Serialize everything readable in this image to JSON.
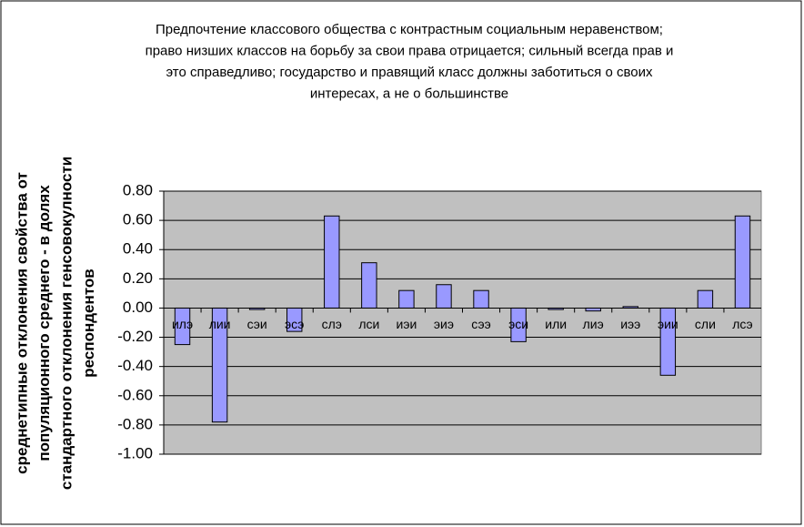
{
  "chart_data": {
    "type": "bar",
    "title": [
      "Предпочтение классового общества с контрастным социальным неравенством;",
      "право низших классов на борьбу за свои права отрицается; сильный всегда прав и",
      "это справедливо; государство и правящий класс должны заботиться о своих",
      "интересах, а не о большинстве"
    ],
    "y_label": [
      "среднетипные отклонения свойства от",
      "популяционного среднего - в долях",
      "стандартного отклонения генсовокулности",
      "респондентов"
    ],
    "categories": [
      "илэ",
      "лии",
      "сэи",
      "эсэ",
      "слэ",
      "лси",
      "иэи",
      "эиэ",
      "сээ",
      "эси",
      "или",
      "лиэ",
      "иээ",
      "эии",
      "сли",
      "лсэ"
    ],
    "values": [
      -0.25,
      -0.78,
      -0.01,
      -0.16,
      0.63,
      0.31,
      0.12,
      0.16,
      0.12,
      -0.23,
      -0.01,
      -0.02,
      0.01,
      -0.46,
      0.12,
      0.63
    ],
    "color": "#9999ff",
    "ylim": [
      -1.0,
      0.8
    ],
    "yticks": [
      {
        "value": -1.0,
        "label": "-1.00"
      },
      {
        "value": -0.8,
        "label": "-0.80"
      },
      {
        "value": -0.6,
        "label": "-0.60"
      },
      {
        "value": -0.4,
        "label": "-0.40"
      },
      {
        "value": -0.2,
        "label": "-0.20"
      },
      {
        "value": 0,
        "label": "0.00"
      },
      {
        "value": 0.2,
        "label": "0.20"
      },
      {
        "value": 0.4,
        "label": "0.40"
      },
      {
        "value": 0.6,
        "label": "0.60"
      },
      {
        "value": 0.8,
        "label": "0.80"
      }
    ],
    "grid": true
  }
}
